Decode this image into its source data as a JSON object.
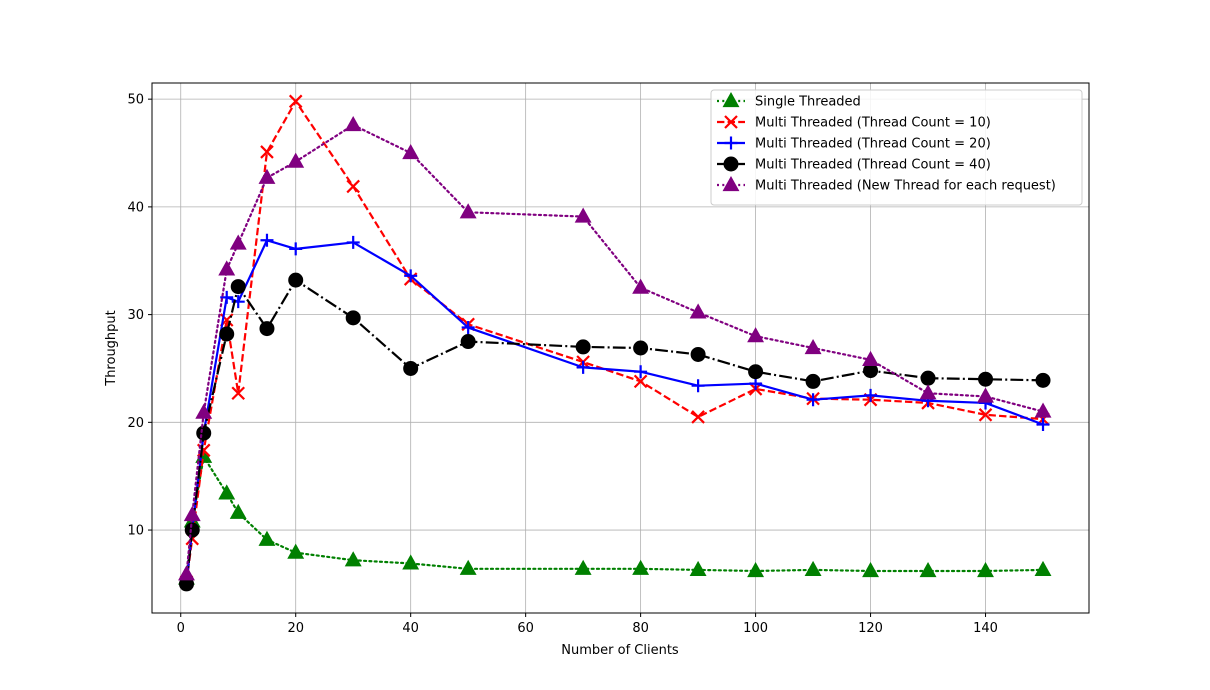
{
  "chart_data": {
    "type": "line",
    "title": "",
    "xlabel": "Number of Clients",
    "ylabel": "Throughput",
    "xlim": [
      -5,
      158
    ],
    "ylim": [
      2.3,
      51.5
    ],
    "xticks": [
      0,
      20,
      40,
      60,
      80,
      100,
      120,
      140
    ],
    "yticks": [
      10,
      20,
      30,
      40,
      50
    ],
    "grid": true,
    "legend_position": "top-right",
    "series": [
      {
        "name": "Single Threaded",
        "color": "#008000",
        "dash": "dotted",
        "marker": "triangle",
        "x": [
          1,
          2,
          4,
          8,
          10,
          15,
          20,
          30,
          40,
          50,
          70,
          80,
          90,
          100,
          110,
          120,
          130,
          140,
          150
        ],
        "y": [
          5.5,
          10.8,
          16.8,
          13.4,
          11.6,
          9.1,
          7.9,
          7.2,
          6.9,
          6.4,
          6.4,
          6.4,
          6.3,
          6.2,
          6.3,
          6.2,
          6.2,
          6.2,
          6.3
        ]
      },
      {
        "name": "Multi Threaded (Thread Count = 10)",
        "color": "#ff0000",
        "dash": "dashed",
        "marker": "x",
        "x": [
          1,
          2,
          4,
          8,
          10,
          15,
          20,
          30,
          40,
          50,
          70,
          80,
          90,
          100,
          110,
          120,
          130,
          140,
          150
        ],
        "y": [
          5.2,
          9.2,
          17.4,
          29.5,
          22.7,
          45.1,
          49.8,
          41.9,
          33.3,
          29.1,
          25.6,
          23.8,
          20.5,
          23.1,
          22.2,
          22.1,
          21.8,
          20.7,
          20.3
        ]
      },
      {
        "name": "Multi Threaded (Thread Count = 20)",
        "color": "#0000ff",
        "dash": "solid",
        "marker": "plus",
        "x": [
          1,
          2,
          4,
          8,
          10,
          15,
          20,
          30,
          40,
          50,
          70,
          80,
          90,
          100,
          110,
          120,
          130,
          140,
          150
        ],
        "y": [
          5.0,
          10.1,
          19.0,
          31.6,
          31.2,
          36.9,
          36.1,
          36.7,
          33.6,
          28.8,
          25.1,
          24.7,
          23.4,
          23.6,
          22.1,
          22.5,
          22.0,
          21.8,
          19.8
        ]
      },
      {
        "name": "Multi Threaded (Thread Count = 40)",
        "color": "#000000",
        "dash": "dashdot",
        "marker": "circle",
        "x": [
          1,
          2,
          4,
          8,
          10,
          15,
          20,
          30,
          40,
          50,
          70,
          80,
          90,
          100,
          110,
          120,
          130,
          140,
          150
        ],
        "y": [
          5.0,
          10.0,
          19.0,
          28.2,
          32.6,
          28.7,
          33.2,
          29.7,
          25.0,
          27.5,
          27.0,
          26.9,
          26.3,
          24.7,
          23.8,
          24.8,
          24.1,
          24.0,
          23.9
        ]
      },
      {
        "name": "Multi Threaded (New Thread for each request)",
        "color": "#800080",
        "dash": "dotted",
        "marker": "triangle",
        "x": [
          1,
          2,
          4,
          8,
          10,
          15,
          20,
          30,
          40,
          50,
          70,
          80,
          90,
          100,
          110,
          120,
          130,
          140,
          150
        ],
        "y": [
          5.9,
          11.4,
          20.9,
          34.2,
          36.6,
          42.7,
          44.2,
          47.6,
          45.0,
          39.5,
          39.1,
          32.5,
          30.2,
          28.0,
          26.9,
          25.8,
          22.7,
          22.4,
          21.0
        ]
      }
    ]
  }
}
